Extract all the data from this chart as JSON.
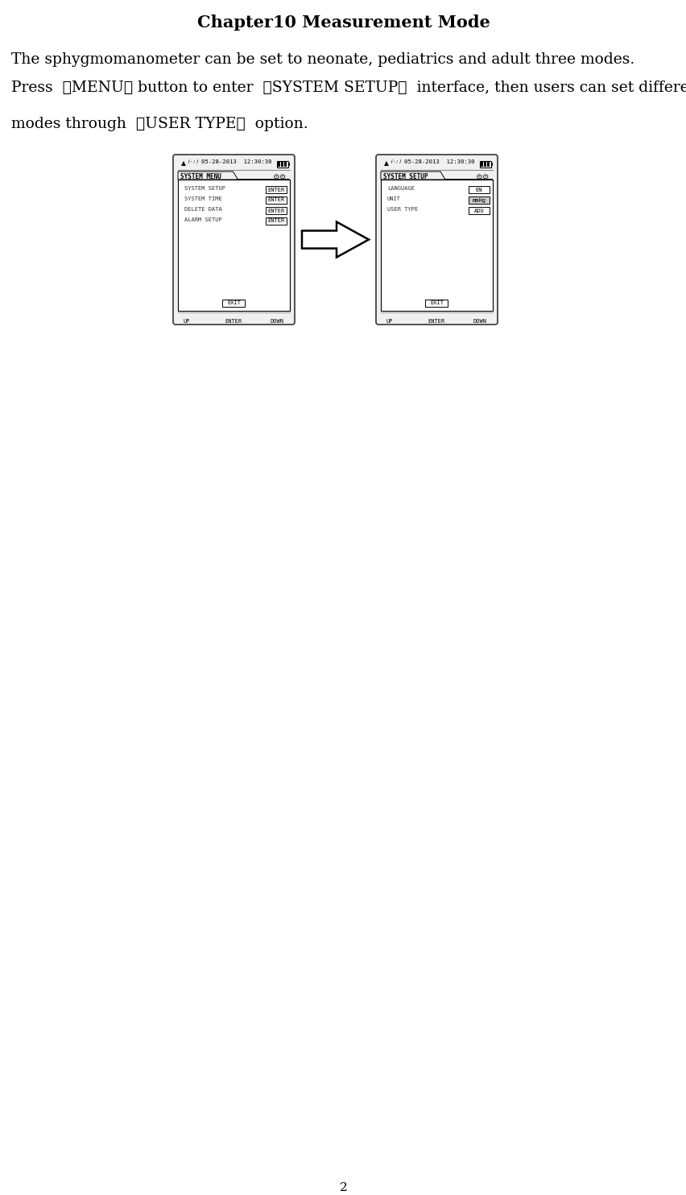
{
  "title": "Chapter10 Measurement Mode",
  "title_fontsize": 15,
  "body_text1": "The sphygmomanometer can be set to neonate, pediatrics and adult three modes.",
  "line2": "Press  【MENU】 button to enter  【SYSTEM SETUP】  interface, then users can set different",
  "line3": "modes through  【USER TYPE】  option.",
  "page_number": "2",
  "screen1": {
    "status_bar": "05-28-2013  12:30:30",
    "title": "SYSTEM MENU",
    "items": [
      {
        "label": "SYSTEM SETUP",
        "button": "ENTER",
        "btn_highlight": false
      },
      {
        "label": "SYSTEM TIME",
        "button": "ENTER",
        "btn_highlight": false
      },
      {
        "label": "DELETE DATA",
        "button": "ENTER",
        "btn_highlight": false
      },
      {
        "label": "ALARM SETUP",
        "button": "ENTER",
        "btn_highlight": false
      }
    ],
    "exit_button": "EXIT",
    "bottom_labels": [
      "UP",
      "ENTER",
      "DOWN"
    ]
  },
  "screen2": {
    "status_bar": "05-28-2013  12:30:30",
    "title": "SYSTEM SETUP",
    "items": [
      {
        "label": "LANGUAGE",
        "button": "EN",
        "btn_highlight": false
      },
      {
        "label": "UNIT",
        "button": "mmHg",
        "btn_highlight": true
      },
      {
        "label": "USER TYPE",
        "button": "ADU",
        "btn_highlight": false
      }
    ],
    "exit_button": "EXIT",
    "bottom_labels": [
      "UP",
      "ENTER",
      "DOWN"
    ]
  },
  "bg_color": "#ffffff",
  "text_color": "#000000",
  "body_fontsize": 13.5
}
